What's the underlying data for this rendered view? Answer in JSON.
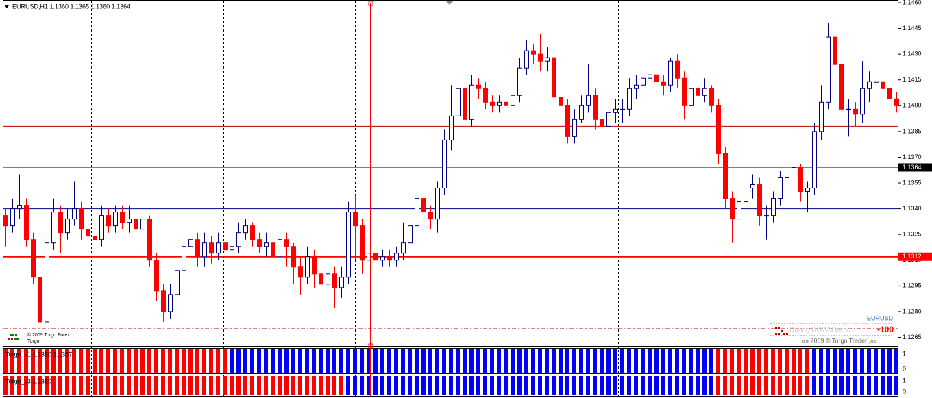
{
  "chart_data": {
    "type": "candlestick",
    "title": "EURUSD,H1  1.1360 1.1365 1.1360 1.1364",
    "ylim": [
      1.126,
      1.146
    ],
    "yticks": [
      {
        "value": 1.146,
        "label": "1.1460"
      },
      {
        "value": 1.1445,
        "label": "1.1445"
      },
      {
        "value": 1.143,
        "label": "1.1430"
      },
      {
        "value": 1.1415,
        "label": "1.1415"
      },
      {
        "value": 1.14,
        "label": "1.1400"
      },
      {
        "value": 1.1385,
        "label": "1.1385"
      },
      {
        "value": 1.137,
        "label": "1.1370"
      },
      {
        "value": 1.1355,
        "label": "1.1355"
      },
      {
        "value": 1.134,
        "label": "1.1340"
      },
      {
        "value": 1.1325,
        "label": "1.1325"
      },
      {
        "value": 1.131,
        "label": "1.1310"
      },
      {
        "value": 1.1295,
        "label": "1.1295"
      },
      {
        "value": 1.128,
        "label": "1.1280"
      },
      {
        "value": 1.1265,
        "label": "1.1265"
      }
    ],
    "up_color": "#000080",
    "down_color": "#ff0000",
    "series": [
      {
        "name": "EURUSD",
        "ohlc": [
          [
            1.1336,
            1.134,
            1.1318,
            1.133
          ],
          [
            1.133,
            1.1346,
            1.1326,
            1.134
          ],
          [
            1.134,
            1.136,
            1.1334,
            1.1342
          ],
          [
            1.1342,
            1.1346,
            1.1318,
            1.1322
          ],
          [
            1.1322,
            1.1326,
            1.1296,
            1.13
          ],
          [
            1.13,
            1.1304,
            1.127,
            1.1274
          ],
          [
            1.1274,
            1.1324,
            1.127,
            1.132
          ],
          [
            1.132,
            1.1346,
            1.1316,
            1.1338
          ],
          [
            1.1338,
            1.1342,
            1.1314,
            1.1326
          ],
          [
            1.1326,
            1.134,
            1.1322,
            1.1334
          ],
          [
            1.1334,
            1.1356,
            1.133,
            1.134
          ],
          [
            1.134,
            1.1344,
            1.1322,
            1.1328
          ],
          [
            1.1328,
            1.1332,
            1.132,
            1.1324
          ],
          [
            1.1324,
            1.1328,
            1.1318,
            1.1322
          ],
          [
            1.1322,
            1.1342,
            1.1318,
            1.1336
          ],
          [
            1.1336,
            1.134,
            1.1326,
            1.133
          ],
          [
            1.133,
            1.1342,
            1.1326,
            1.1338
          ],
          [
            1.1338,
            1.1342,
            1.1328,
            1.1332
          ],
          [
            1.1332,
            1.1342,
            1.1326,
            1.1334
          ],
          [
            1.1334,
            1.1338,
            1.131,
            1.1328
          ],
          [
            1.1328,
            1.134,
            1.1322,
            1.1334
          ],
          [
            1.1334,
            1.1336,
            1.1306,
            1.131
          ],
          [
            1.131,
            1.1314,
            1.1286,
            1.1292
          ],
          [
            1.1292,
            1.1296,
            1.1274,
            1.128
          ],
          [
            1.128,
            1.1296,
            1.1276,
            1.129
          ],
          [
            1.129,
            1.131,
            1.1286,
            1.1304
          ],
          [
            1.1304,
            1.1326,
            1.13,
            1.1318
          ],
          [
            1.1318,
            1.1328,
            1.131,
            1.1322
          ],
          [
            1.1322,
            1.1326,
            1.1306,
            1.1312
          ],
          [
            1.1312,
            1.1326,
            1.1306,
            1.132
          ],
          [
            1.132,
            1.1324,
            1.1308,
            1.1314
          ],
          [
            1.1314,
            1.1326,
            1.131,
            1.132
          ],
          [
            1.132,
            1.1324,
            1.1312,
            1.1316
          ],
          [
            1.1316,
            1.1322,
            1.1312,
            1.1318
          ],
          [
            1.1318,
            1.1332,
            1.1314,
            1.1326
          ],
          [
            1.1326,
            1.1334,
            1.1322,
            1.133
          ],
          [
            1.133,
            1.1332,
            1.1318,
            1.1322
          ],
          [
            1.1322,
            1.1326,
            1.1314,
            1.1318
          ],
          [
            1.1318,
            1.1326,
            1.1312,
            1.132
          ],
          [
            1.132,
            1.1322,
            1.1306,
            1.1312
          ],
          [
            1.1312,
            1.1326,
            1.1308,
            1.1322
          ],
          [
            1.1322,
            1.1326,
            1.1306,
            1.1318
          ],
          [
            1.1318,
            1.132,
            1.1296,
            1.1306
          ],
          [
            1.1306,
            1.1312,
            1.129,
            1.13
          ],
          [
            1.13,
            1.1318,
            1.1296,
            1.1312
          ],
          [
            1.1312,
            1.1316,
            1.1294,
            1.1302
          ],
          [
            1.1302,
            1.1308,
            1.1284,
            1.1296
          ],
          [
            1.1296,
            1.131,
            1.129,
            1.1302
          ],
          [
            1.1302,
            1.1306,
            1.1282,
            1.1294
          ],
          [
            1.1294,
            1.1306,
            1.1288,
            1.13
          ],
          [
            1.13,
            1.1344,
            1.1296,
            1.1338
          ],
          [
            1.1338,
            1.1348,
            1.131,
            1.133
          ],
          [
            1.133,
            1.1334,
            1.1302,
            1.131
          ],
          [
            1.131,
            1.1318,
            1.1304,
            1.1314
          ],
          [
            1.1314,
            1.1318,
            1.1306,
            1.131
          ],
          [
            1.131,
            1.1316,
            1.1306,
            1.1312
          ],
          [
            1.1312,
            1.1316,
            1.1306,
            1.131
          ],
          [
            1.131,
            1.1318,
            1.1306,
            1.1314
          ],
          [
            1.1314,
            1.1332,
            1.131,
            1.132
          ],
          [
            1.132,
            1.134,
            1.1318,
            1.133
          ],
          [
            1.133,
            1.1354,
            1.1326,
            1.1346
          ],
          [
            1.1346,
            1.135,
            1.1332,
            1.1338
          ],
          [
            1.1338,
            1.1342,
            1.1328,
            1.1334
          ],
          [
            1.1334,
            1.1356,
            1.1326,
            1.1352
          ],
          [
            1.1352,
            1.1386,
            1.1348,
            1.138
          ],
          [
            1.138,
            1.1412,
            1.1374,
            1.1394
          ],
          [
            1.1394,
            1.1424,
            1.1388,
            1.141
          ],
          [
            1.141,
            1.1414,
            1.1384,
            1.1392
          ],
          [
            1.1392,
            1.1418,
            1.1388,
            1.1412
          ],
          [
            1.1412,
            1.1416,
            1.1404,
            1.141
          ],
          [
            1.141,
            1.1414,
            1.1398,
            1.1402
          ],
          [
            1.1402,
            1.1406,
            1.1396,
            1.14
          ],
          [
            1.14,
            1.1406,
            1.1396,
            1.1402
          ],
          [
            1.1402,
            1.1404,
            1.1394,
            1.14
          ],
          [
            1.14,
            1.1412,
            1.1396,
            1.1406
          ],
          [
            1.1406,
            1.1428,
            1.1402,
            1.1422
          ],
          [
            1.1422,
            1.1438,
            1.1418,
            1.1432
          ],
          [
            1.1432,
            1.1436,
            1.1424,
            1.143
          ],
          [
            1.143,
            1.1442,
            1.142,
            1.1426
          ],
          [
            1.1426,
            1.1434,
            1.142,
            1.1428
          ],
          [
            1.1428,
            1.143,
            1.14,
            1.1405
          ],
          [
            1.1405,
            1.1416,
            1.138,
            1.14
          ],
          [
            1.14,
            1.1404,
            1.1378,
            1.1382
          ],
          [
            1.1382,
            1.1398,
            1.1378,
            1.1392
          ],
          [
            1.1392,
            1.1406,
            1.139,
            1.14
          ],
          [
            1.14,
            1.1424,
            1.1396,
            1.1406
          ],
          [
            1.1406,
            1.141,
            1.1386,
            1.1392
          ],
          [
            1.1392,
            1.1396,
            1.1384,
            1.1388
          ],
          [
            1.1388,
            1.1402,
            1.1384,
            1.1396
          ],
          [
            1.1396,
            1.1404,
            1.139,
            1.1398
          ],
          [
            1.1398,
            1.1404,
            1.139,
            1.1398
          ],
          [
            1.1398,
            1.1416,
            1.1394,
            1.141
          ],
          [
            1.141,
            1.1418,
            1.1404,
            1.1412
          ],
          [
            1.1412,
            1.1422,
            1.1406,
            1.1416
          ],
          [
            1.1416,
            1.1424,
            1.141,
            1.1418
          ],
          [
            1.1418,
            1.1422,
            1.1408,
            1.1414
          ],
          [
            1.1414,
            1.1418,
            1.1406,
            1.1412
          ],
          [
            1.1412,
            1.1428,
            1.1408,
            1.1426
          ],
          [
            1.1426,
            1.143,
            1.141,
            1.1416
          ],
          [
            1.1416,
            1.142,
            1.1392,
            1.14
          ],
          [
            1.14,
            1.1416,
            1.1396,
            1.141
          ],
          [
            1.141,
            1.1414,
            1.1398,
            1.1406
          ],
          [
            1.1406,
            1.1416,
            1.1402,
            1.141
          ],
          [
            1.141,
            1.1412,
            1.1396,
            1.14
          ],
          [
            1.14,
            1.1404,
            1.1366,
            1.1372
          ],
          [
            1.1372,
            1.1376,
            1.134,
            1.1346
          ],
          [
            1.1346,
            1.135,
            1.132,
            1.1334
          ],
          [
            1.1334,
            1.135,
            1.133,
            1.1344
          ],
          [
            1.1344,
            1.1356,
            1.134,
            1.1352
          ],
          [
            1.1352,
            1.136,
            1.1346,
            1.1354
          ],
          [
            1.1354,
            1.1358,
            1.133,
            1.1336
          ],
          [
            1.1336,
            1.1342,
            1.1322,
            1.1336
          ],
          [
            1.1336,
            1.135,
            1.1332,
            1.1346
          ],
          [
            1.1346,
            1.1362,
            1.1342,
            1.1358
          ],
          [
            1.1358,
            1.1366,
            1.1354,
            1.1362
          ],
          [
            1.1362,
            1.1368,
            1.1356,
            1.1364
          ],
          [
            1.1364,
            1.1366,
            1.1344,
            1.135
          ],
          [
            1.135,
            1.1356,
            1.1338,
            1.1352
          ],
          [
            1.1352,
            1.139,
            1.1348,
            1.1385
          ],
          [
            1.1385,
            1.1412,
            1.138,
            1.1402
          ],
          [
            1.1402,
            1.1448,
            1.1398,
            1.144
          ],
          [
            1.144,
            1.1444,
            1.1418,
            1.1424
          ],
          [
            1.1424,
            1.1428,
            1.1392,
            1.1398
          ],
          [
            1.1398,
            1.1404,
            1.1382,
            1.1398
          ],
          [
            1.1398,
            1.1402,
            1.1388,
            1.1395
          ],
          [
            1.1395,
            1.1426,
            1.139,
            1.141
          ],
          [
            1.141,
            1.142,
            1.1402,
            1.1414
          ],
          [
            1.1414,
            1.1418,
            1.1406,
            1.1414
          ],
          [
            1.1414,
            1.1418,
            1.1404,
            1.141
          ],
          [
            1.141,
            1.1414,
            1.14,
            1.1404
          ],
          [
            1.1404,
            1.1408,
            1.1396,
            1.14
          ]
        ]
      }
    ],
    "levels": [
      {
        "value": 1.1388,
        "color": "#c00000"
      },
      {
        "value": 1.1364,
        "label": "1.1364",
        "color": "#808080"
      },
      {
        "value": 1.134,
        "color": "#00008b"
      },
      {
        "value": 1.1312,
        "label": "1.1312",
        "color": "#ff0000"
      },
      {
        "value": 1.127,
        "color": "#c00000"
      }
    ],
    "panels": [
      {
        "label": "Torgo_v1 1.1360 1.1357",
        "yticks": [
          0,
          1
        ],
        "colors": [
          "#ff0000",
          "#0000ff"
        ],
        "runs": [
          [
            0,
            33
          ],
          [
            1,
            71
          ],
          [
            0,
            14
          ],
          [
            1,
            13
          ]
        ]
      },
      {
        "label": "Torgo_v3 1.1360",
        "yticks": [
          0,
          1
        ],
        "colors": [
          "#ff0000",
          "#0000ff"
        ],
        "runs": [
          [
            0,
            50
          ],
          [
            1,
            54
          ],
          [
            0,
            14
          ],
          [
            1,
            13
          ]
        ]
      }
    ],
    "footer_left": [
      "© 2009 Torgo Forex",
      "Torgo"
    ],
    "info_box": {
      "symbol": "EURUSD",
      "status": "During DOWN trend",
      "value": "-100",
      "credit": "»»  2009 © Torgo Trader ,««"
    }
  }
}
